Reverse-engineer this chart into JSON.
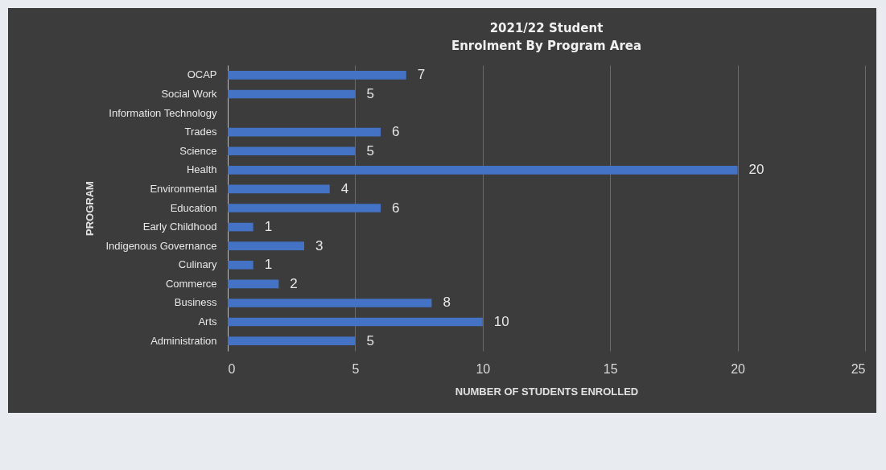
{
  "chart_data": {
    "type": "bar",
    "orientation": "horizontal",
    "title": "2021/22 Student\nEnrolment By Program Area",
    "xlabel": "NUMBER OF STUDENTS ENROLLED",
    "ylabel": "PROGRAM",
    "categories": [
      "OCAP",
      "Social Work",
      "Information Technology",
      "Trades",
      "Science",
      "Health",
      "Environmental",
      "Education",
      "Early Childhood",
      "Indigenous Governance",
      "Culinary",
      "Commerce",
      "Business",
      "Arts",
      "Administration"
    ],
    "values": [
      7,
      5,
      null,
      6,
      5,
      20,
      4,
      6,
      1,
      3,
      1,
      2,
      8,
      10,
      5
    ],
    "color": "#4472c4",
    "xlim": [
      0,
      25
    ],
    "xticks": [
      0,
      5,
      10,
      15,
      20,
      25
    ],
    "grid": "x",
    "data_labels": true
  }
}
